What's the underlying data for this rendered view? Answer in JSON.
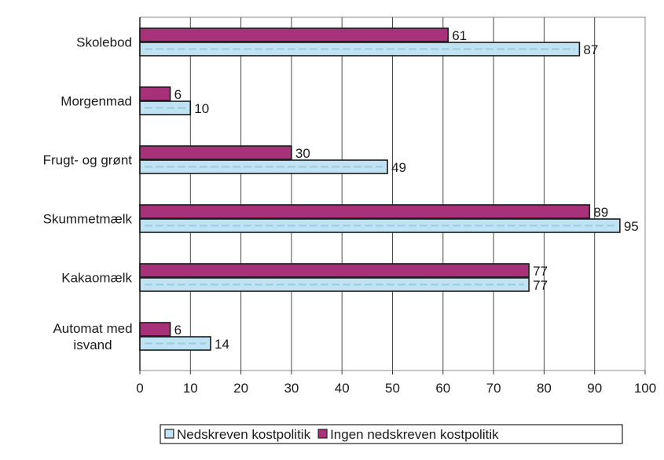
{
  "chart_data": {
    "type": "bar",
    "orientation": "horizontal",
    "categories": [
      [
        "Skolebod"
      ],
      [
        "Morgenmad"
      ],
      [
        "Frugt- og grønt"
      ],
      [
        "Skummetmælk"
      ],
      [
        "Kakaomælk"
      ],
      [
        "Automat med",
        "isvand"
      ]
    ],
    "series": [
      {
        "name": "Ingen nedskreven kostpolitik",
        "values": [
          61,
          6,
          30,
          89,
          77,
          6
        ],
        "color": "#a8327a"
      },
      {
        "name": "Nedskreven kostpolitik",
        "values": [
          87,
          10,
          49,
          95,
          77,
          14
        ],
        "color": "#bfe3f2"
      }
    ],
    "xticks": [
      0,
      10,
      20,
      30,
      40,
      50,
      60,
      70,
      80,
      90,
      100
    ],
    "xlim": [
      0,
      100
    ],
    "grid": true,
    "legend": {
      "placement": "bottom",
      "order": [
        "Nedskreven kostpolitik",
        "Ingen nedskreven kostpolitik"
      ]
    }
  }
}
